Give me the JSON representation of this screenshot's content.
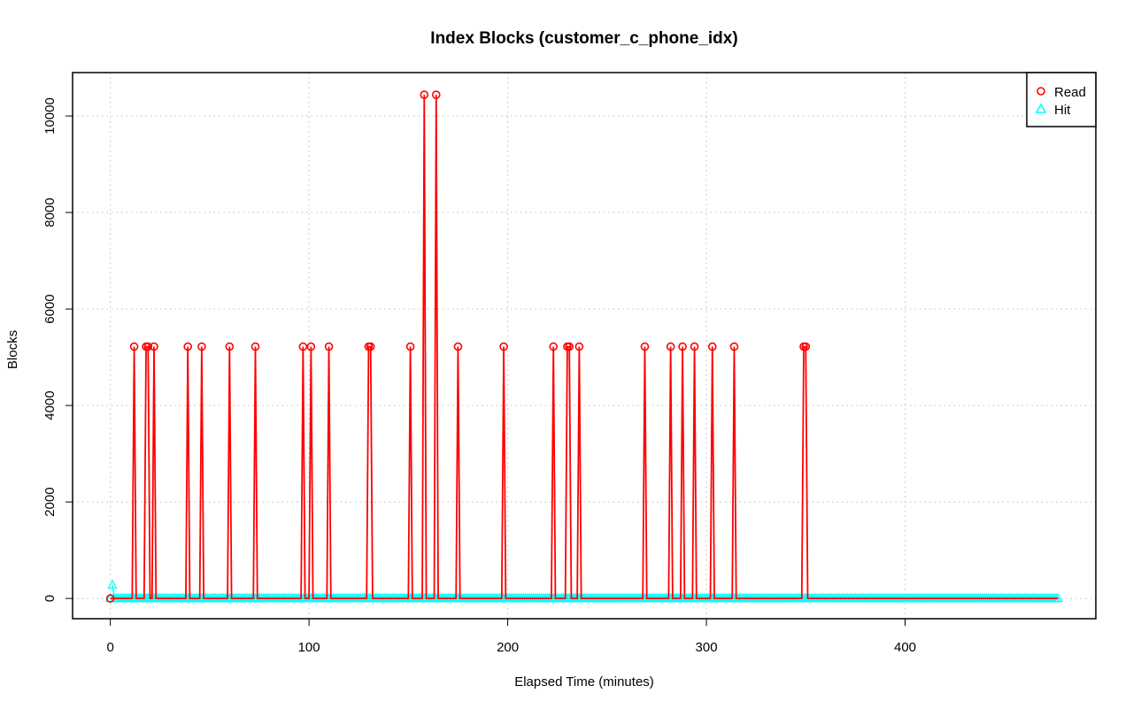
{
  "chart_data": {
    "type": "line",
    "title": "Index Blocks (customer_c_phone_idx)",
    "xlabel": "Elapsed Time (minutes)",
    "ylabel": "Blocks",
    "xlim": [
      -19,
      496
    ],
    "ylim": [
      -420,
      10900
    ],
    "xticks": [
      0,
      100,
      200,
      300,
      400
    ],
    "yticks": [
      0,
      2000,
      4000,
      6000,
      8000,
      10000
    ],
    "x_tick_labels": [
      "0",
      "100",
      "200",
      "300",
      "400"
    ],
    "y_tick_labels": [
      "0",
      "2000",
      "4000",
      "6000",
      "8000",
      "10000"
    ],
    "grid": true,
    "legend_position": "top-right",
    "x_range": [
      0,
      477
    ],
    "series": [
      {
        "name": "Read",
        "color": "#ff0000",
        "marker": "circle",
        "baseline": 0,
        "spikes": [
          {
            "x": 12,
            "y": 5220
          },
          {
            "x": 18,
            "y": 5220
          },
          {
            "x": 19,
            "y": 5220
          },
          {
            "x": 22,
            "y": 5220
          },
          {
            "x": 39,
            "y": 5220
          },
          {
            "x": 46,
            "y": 5220
          },
          {
            "x": 60,
            "y": 5220
          },
          {
            "x": 73,
            "y": 5220
          },
          {
            "x": 97,
            "y": 5220
          },
          {
            "x": 101,
            "y": 5220
          },
          {
            "x": 110,
            "y": 5220
          },
          {
            "x": 130,
            "y": 5220
          },
          {
            "x": 131,
            "y": 5220
          },
          {
            "x": 151,
            "y": 5220
          },
          {
            "x": 158,
            "y": 10440
          },
          {
            "x": 164,
            "y": 10440
          },
          {
            "x": 175,
            "y": 5220
          },
          {
            "x": 198,
            "y": 5220
          },
          {
            "x": 223,
            "y": 5220
          },
          {
            "x": 230,
            "y": 5220
          },
          {
            "x": 231,
            "y": 5220
          },
          {
            "x": 236,
            "y": 5220
          },
          {
            "x": 269,
            "y": 5220
          },
          {
            "x": 282,
            "y": 5220
          },
          {
            "x": 288,
            "y": 5220
          },
          {
            "x": 294,
            "y": 5220
          },
          {
            "x": 303,
            "y": 5220
          },
          {
            "x": 314,
            "y": 5220
          },
          {
            "x": 349,
            "y": 5220
          },
          {
            "x": 350,
            "y": 5220
          }
        ]
      },
      {
        "name": "Hit",
        "color": "#00ffff",
        "marker": "triangle",
        "baseline": 0,
        "first_point": {
          "x": 1,
          "y": 280
        }
      }
    ]
  }
}
